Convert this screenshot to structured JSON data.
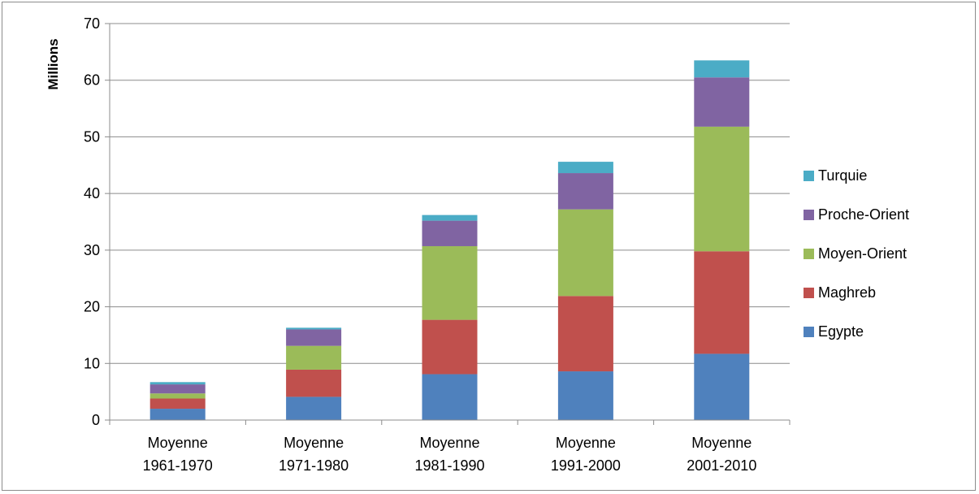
{
  "chart_data": {
    "type": "bar",
    "stacked": true,
    "title": "",
    "xlabel": "",
    "ylabel": "Millions",
    "ylim": [
      0,
      70
    ],
    "yticks": [
      0,
      10,
      20,
      30,
      40,
      50,
      60,
      70
    ],
    "grid": true,
    "legend_position": "right",
    "categories": [
      [
        "Moyenne",
        "1961-1970"
      ],
      [
        "Moyenne",
        "1971-1980"
      ],
      [
        "Moyenne",
        "1981-1990"
      ],
      [
        "Moyenne",
        "1991-2000"
      ],
      [
        "Moyenne",
        "2001-2010"
      ]
    ],
    "series": [
      {
        "name": "Egypte",
        "color": "#4F81BD",
        "values": [
          2.0,
          4.1,
          8.1,
          8.6,
          11.7
        ]
      },
      {
        "name": "Maghreb",
        "color": "#C0504D",
        "values": [
          1.8,
          4.8,
          9.6,
          13.3,
          18.1
        ]
      },
      {
        "name": "Moyen-Orient",
        "color": "#9BBB59",
        "values": [
          0.9,
          4.2,
          13.0,
          15.3,
          22.0
        ]
      },
      {
        "name": "Proche-Orient",
        "color": "#8064A2",
        "values": [
          1.6,
          2.9,
          4.5,
          6.4,
          8.7
        ]
      },
      {
        "name": "Turquie",
        "color": "#4BACC6",
        "values": [
          0.4,
          0.3,
          1.0,
          2.0,
          3.0
        ]
      }
    ]
  }
}
